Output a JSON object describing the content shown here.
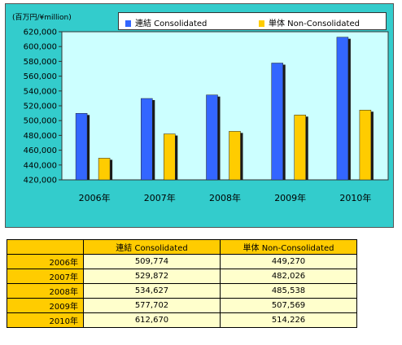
{
  "chart_data": {
    "type": "bar",
    "unit_label": "(百万円/¥million)",
    "categories": [
      "2006年",
      "2007年",
      "2008年",
      "2009年",
      "2010年"
    ],
    "series": [
      {
        "name": "連結 Consolidated",
        "color": "#3366ff",
        "values": [
          509774,
          529872,
          534627,
          577702,
          612670
        ]
      },
      {
        "name": "単体 Non-Consolidated",
        "color": "#ffcc00",
        "values": [
          449270,
          482026,
          485538,
          507569,
          514226
        ]
      }
    ],
    "ylim": [
      420000,
      620000
    ],
    "yticks": [
      "420,000",
      "440,000",
      "460,000",
      "480,000",
      "500,000",
      "520,000",
      "540,000",
      "560,000",
      "580,000",
      "600,000",
      "620,000"
    ],
    "legend_position": "top"
  },
  "table": {
    "headers": [
      "連結 Consolidated",
      "単体 Non-Consolidated"
    ],
    "rows": [
      {
        "year": "2006年",
        "consolidated": "509,774",
        "non_consolidated": "449,270"
      },
      {
        "year": "2007年",
        "consolidated": "529,872",
        "non_consolidated": "482,026"
      },
      {
        "year": "2008年",
        "consolidated": "534,627",
        "non_consolidated": "485,538"
      },
      {
        "year": "2009年",
        "consolidated": "577,702",
        "non_consolidated": "507,569"
      },
      {
        "year": "2010年",
        "consolidated": "612,670",
        "non_consolidated": "514,226"
      }
    ]
  }
}
